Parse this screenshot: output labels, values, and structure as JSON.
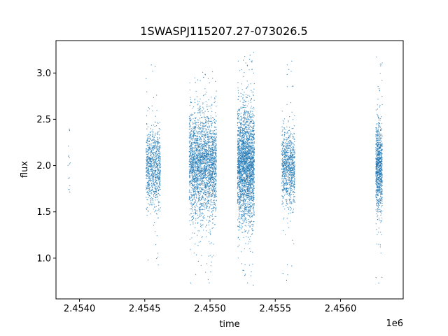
{
  "chart_data": {
    "type": "scatter",
    "title": "1SWASPJ115207.27-073026.5",
    "xlabel": "time",
    "ylabel": "flux",
    "x_offset_label": "1e6",
    "xlim": [
      2.45382,
      2.45648
    ],
    "ylim": [
      0.56,
      3.35
    ],
    "x_ticks": [
      2.454,
      2.4545,
      2.455,
      2.4555,
      2.456
    ],
    "x_tick_labels": [
      "2.4540",
      "2.4545",
      "2.4550",
      "2.4555",
      "2.4560"
    ],
    "y_ticks": [
      1.0,
      1.5,
      2.0,
      2.5,
      3.0
    ],
    "y_tick_labels": [
      "1.0",
      "1.5",
      "2.0",
      "2.5",
      "3.0"
    ],
    "grid": false,
    "point_color": "#1f77b4",
    "observing_seasons": [
      {
        "x_range": [
          2.45391,
          2.45393
        ],
        "core_y": [
          1.75,
          2.3
        ],
        "extent_y": [
          1.7,
          2.4
        ],
        "density": "sparse"
      },
      {
        "x_range": [
          2.45451,
          2.45462
        ],
        "core_y": [
          1.6,
          2.35
        ],
        "extent_y": [
          0.88,
          3.1
        ],
        "density": "medium"
      },
      {
        "x_range": [
          2.45484,
          2.45505
        ],
        "core_y": [
          1.5,
          2.5
        ],
        "extent_y": [
          0.72,
          3.02
        ],
        "density": "dense"
      },
      {
        "x_range": [
          2.45521,
          2.45534
        ],
        "core_y": [
          1.45,
          2.55
        ],
        "extent_y": [
          0.68,
          3.25
        ],
        "density": "dense"
      },
      {
        "x_range": [
          2.45555,
          2.45565
        ],
        "core_y": [
          1.6,
          2.35
        ],
        "extent_y": [
          0.75,
          3.16
        ],
        "density": "medium"
      },
      {
        "x_range": [
          2.45627,
          2.45632
        ],
        "core_y": [
          1.55,
          2.4
        ],
        "extent_y": [
          0.7,
          3.22
        ],
        "density": "medium"
      }
    ]
  }
}
